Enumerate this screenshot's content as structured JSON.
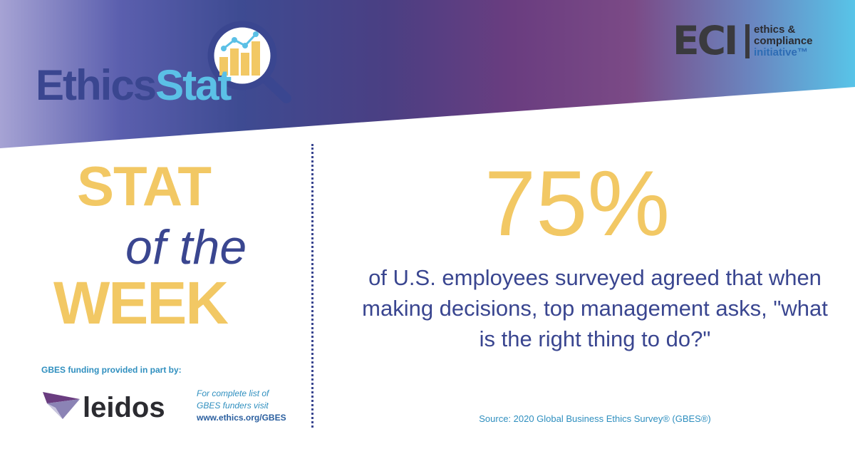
{
  "header": {
    "logo": {
      "word1": "Ethics",
      "word2": "Stat",
      "icon": "magnifier-bar-chart-icon"
    },
    "eci": {
      "mark": "ECI",
      "line1": "ethics &",
      "line2": "compliance",
      "line3": "initiative™"
    }
  },
  "left": {
    "stat": "STAT",
    "of_the": "of the",
    "week": "WEEK",
    "funding": "GBES funding provided in part by:",
    "sponsor": "leidos",
    "funders_line1": "For complete list of",
    "funders_line2": "GBES funders visit",
    "funders_url": "www.ethics.org/GBES"
  },
  "right": {
    "percent": "75%",
    "statement": "of U.S. employees surveyed agreed that when making decisions, top management asks, \"what is the right thing to do?\"",
    "source": "Source: 2020 Global Business Ethics Survey® (GBES®)"
  },
  "colors": {
    "gold": "#f2c864",
    "navy": "#3a4690",
    "sky": "#5bc0e6"
  }
}
